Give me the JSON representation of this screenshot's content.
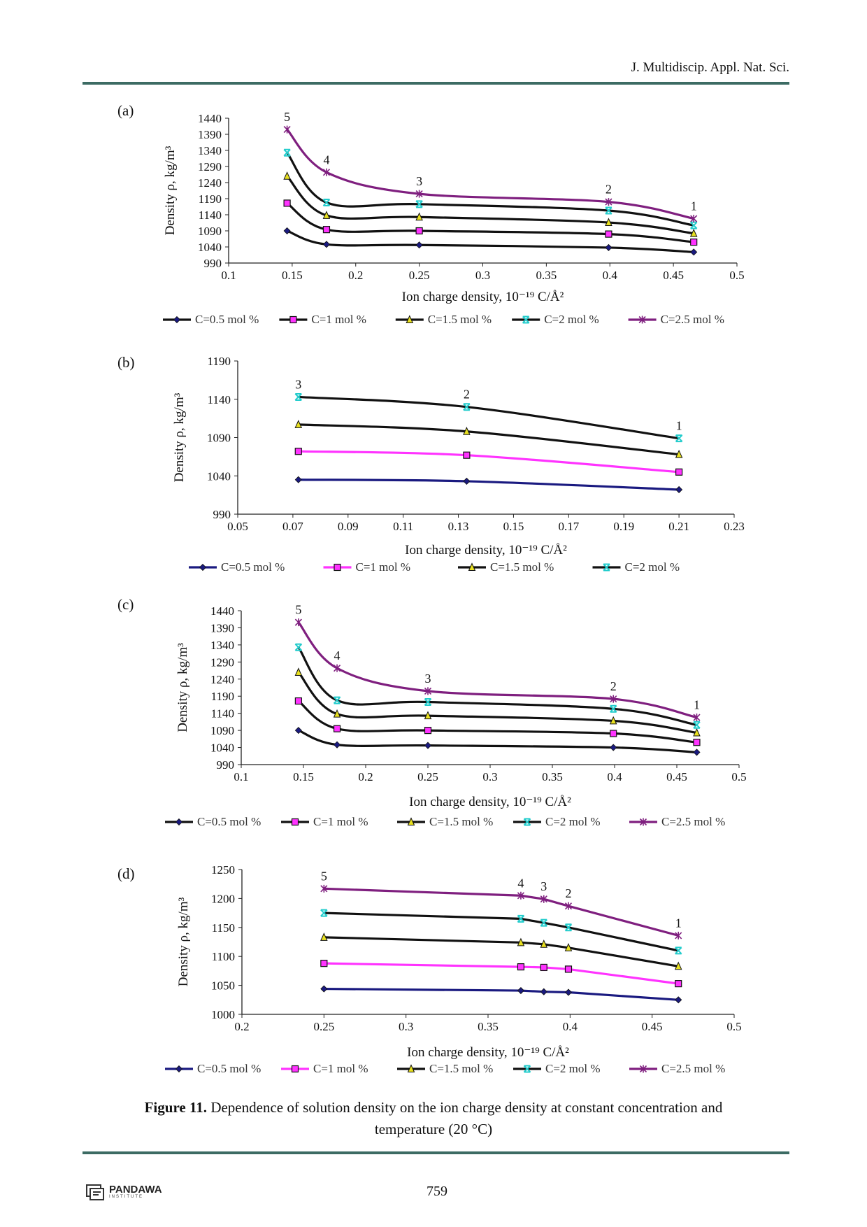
{
  "header": {
    "journal": "J. Multidiscip. Appl. Nat. Sci."
  },
  "colors": {
    "rule": "#3c6b63",
    "navy": "#1a1a80",
    "magenta": "#ff33ff",
    "purple": "#7f1f7f",
    "black": "#111111",
    "cyan": "#22cccc",
    "yellow": "#e8e020"
  },
  "chart_data": [
    {
      "panel": "(a)",
      "type": "line",
      "xlabel": "Ion charge density, 10⁻¹⁹ C/Å²",
      "ylabel": "Density ρ, kg/m³",
      "xlim": [
        0.1,
        0.5
      ],
      "ylim": [
        990,
        1440
      ],
      "xticks": [
        "0.1",
        "0.15",
        "0.2",
        "0.25",
        "0.3",
        "0.35",
        "0.4",
        "0.45",
        "0.5"
      ],
      "yticks": [
        "990",
        "1040",
        "1090",
        "1140",
        "1190",
        "1240",
        "1290",
        "1340",
        "1390",
        "1440"
      ],
      "x": [
        0.146,
        0.177,
        0.25,
        0.399,
        0.466
      ],
      "point_labels": [
        "5",
        "4",
        "3",
        "2",
        "1"
      ],
      "legend": "bottom",
      "series": [
        {
          "name": "C=0.5 mol %",
          "values": [
            1090,
            1048,
            1046,
            1038,
            1024
          ],
          "line": "#111111",
          "marker": "diamond",
          "marker_color": "#1a1a80"
        },
        {
          "name": "C=1 mol %",
          "values": [
            1176,
            1094,
            1090,
            1080,
            1055
          ],
          "line": "#111111",
          "marker": "square",
          "marker_color": "#ff33ff"
        },
        {
          "name": "C=1.5 mol %",
          "values": [
            1260,
            1138,
            1133,
            1116,
            1082
          ],
          "line": "#111111",
          "marker": "triangle",
          "marker_color": "#e8e020"
        },
        {
          "name": "C=2 mol %",
          "values": [
            1333,
            1178,
            1173,
            1153,
            1107
          ],
          "line": "#111111",
          "marker": "x",
          "marker_color": "#22cccc"
        },
        {
          "name": "C=2.5 mol %",
          "values": [
            1405,
            1272,
            1205,
            1180,
            1128
          ],
          "line": "#7f1f7f",
          "marker": "star",
          "marker_color": "#7f1f7f"
        }
      ]
    },
    {
      "panel": "(b)",
      "type": "line",
      "xlabel": "Ion charge density, 10⁻¹⁹ C/Å²",
      "ylabel": "Density ρ, kg/m³",
      "xlim": [
        0.05,
        0.23
      ],
      "ylim": [
        990,
        1190
      ],
      "xticks": [
        "0.05",
        "0.07",
        "0.09",
        "0.11",
        "0.13",
        "0.15",
        "0.17",
        "0.19",
        "0.21",
        "0.23"
      ],
      "yticks": [
        "990",
        "1040",
        "1090",
        "1140",
        "1190"
      ],
      "x": [
        0.072,
        0.133,
        0.21
      ],
      "point_labels": [
        "3",
        "2",
        "1"
      ],
      "legend": "bottom",
      "series": [
        {
          "name": "C=0.5 mol %",
          "values": [
            1035,
            1033,
            1022
          ],
          "line": "#1a1a80",
          "marker": "diamond",
          "marker_color": "#1a1a80"
        },
        {
          "name": "C=1 mol %",
          "values": [
            1072,
            1067,
            1045
          ],
          "line": "#ff33ff",
          "marker": "square",
          "marker_color": "#ff33ff"
        },
        {
          "name": "C=1.5 mol %",
          "values": [
            1107,
            1098,
            1068
          ],
          "line": "#111111",
          "marker": "triangle",
          "marker_color": "#e8e020"
        },
        {
          "name": "C=2 mol %",
          "values": [
            1143,
            1130,
            1089
          ],
          "line": "#111111",
          "marker": "x",
          "marker_color": "#22cccc"
        }
      ]
    },
    {
      "panel": "(c)",
      "type": "line",
      "xlabel": "Ion charge density, 10⁻¹⁹ C/Å²",
      "ylabel": "Density ρ, kg/m³",
      "xlim": [
        0.1,
        0.5
      ],
      "ylim": [
        990,
        1440
      ],
      "xticks": [
        "0.1",
        "0.15",
        "0.2",
        "0.25",
        "0.3",
        "0.35",
        "0.4",
        "0.45",
        "0.5"
      ],
      "yticks": [
        "990",
        "1040",
        "1090",
        "1140",
        "1190",
        "1240",
        "1290",
        "1340",
        "1390",
        "1440"
      ],
      "x": [
        0.146,
        0.177,
        0.25,
        0.399,
        0.466
      ],
      "point_labels": [
        "5",
        "4",
        "3",
        "2",
        "1"
      ],
      "legend": "bottom",
      "series": [
        {
          "name": "C=0.5 mol %",
          "values": [
            1090,
            1048,
            1046,
            1040,
            1026
          ],
          "line": "#111111",
          "marker": "diamond",
          "marker_color": "#1a1a80"
        },
        {
          "name": "C=1 mol %",
          "values": [
            1176,
            1095,
            1090,
            1081,
            1055
          ],
          "line": "#111111",
          "marker": "square",
          "marker_color": "#ff33ff"
        },
        {
          "name": "C=1.5 mol %",
          "values": [
            1260,
            1138,
            1133,
            1118,
            1083
          ],
          "line": "#111111",
          "marker": "triangle",
          "marker_color": "#e8e020"
        },
        {
          "name": "C=2 mol %",
          "values": [
            1333,
            1178,
            1173,
            1153,
            1106
          ],
          "line": "#111111",
          "marker": "x",
          "marker_color": "#22cccc"
        },
        {
          "name": "C=2.5 mol %",
          "values": [
            1406,
            1272,
            1205,
            1182,
            1128
          ],
          "line": "#7f1f7f",
          "marker": "star",
          "marker_color": "#7f1f7f"
        }
      ]
    },
    {
      "panel": "(d)",
      "type": "line",
      "xlabel": "Ion charge density, 10⁻¹⁹ C/Å²",
      "ylabel": "Density ρ, kg/m³",
      "xlim": [
        0.2,
        0.5
      ],
      "ylim": [
        1000,
        1250
      ],
      "xticks": [
        "0.2",
        "0.25",
        "0.3",
        "0.35",
        "0.4",
        "0.45",
        "0.5"
      ],
      "yticks": [
        "1000",
        "1050",
        "1100",
        "1150",
        "1200",
        "1250"
      ],
      "x": [
        0.25,
        0.37,
        0.384,
        0.399,
        0.466
      ],
      "point_labels": [
        "5",
        "4",
        "3",
        "2",
        "1"
      ],
      "legend": "bottom",
      "series": [
        {
          "name": "C=0.5 mol %",
          "values": [
            1044,
            1041,
            1039,
            1038,
            1025
          ],
          "line": "#1a1a80",
          "marker": "diamond",
          "marker_color": "#1a1a80"
        },
        {
          "name": "C=1 mol %",
          "values": [
            1088,
            1082,
            1081,
            1078,
            1053
          ],
          "line": "#ff33ff",
          "marker": "square",
          "marker_color": "#ff33ff"
        },
        {
          "name": "C=1.5 mol %",
          "values": [
            1133,
            1124,
            1121,
            1115,
            1083
          ],
          "line": "#111111",
          "marker": "triangle",
          "marker_color": "#e8e020"
        },
        {
          "name": "C=2 mol %",
          "values": [
            1175,
            1165,
            1158,
            1150,
            1110
          ],
          "line": "#111111",
          "marker": "x",
          "marker_color": "#22cccc"
        },
        {
          "name": "C=2.5 mol %",
          "values": [
            1217,
            1205,
            1199,
            1187,
            1136
          ],
          "line": "#7f1f7f",
          "marker": "star",
          "marker_color": "#7f1f7f"
        }
      ]
    }
  ],
  "caption": {
    "label": "Figure 11.",
    "text": " Dependence of solution density on the ion charge density at constant concentration and temperature (20 °C)"
  },
  "footer": {
    "page_number": "759",
    "logo_name": "PANDAWA",
    "logo_sub": "INSTITUTE"
  }
}
